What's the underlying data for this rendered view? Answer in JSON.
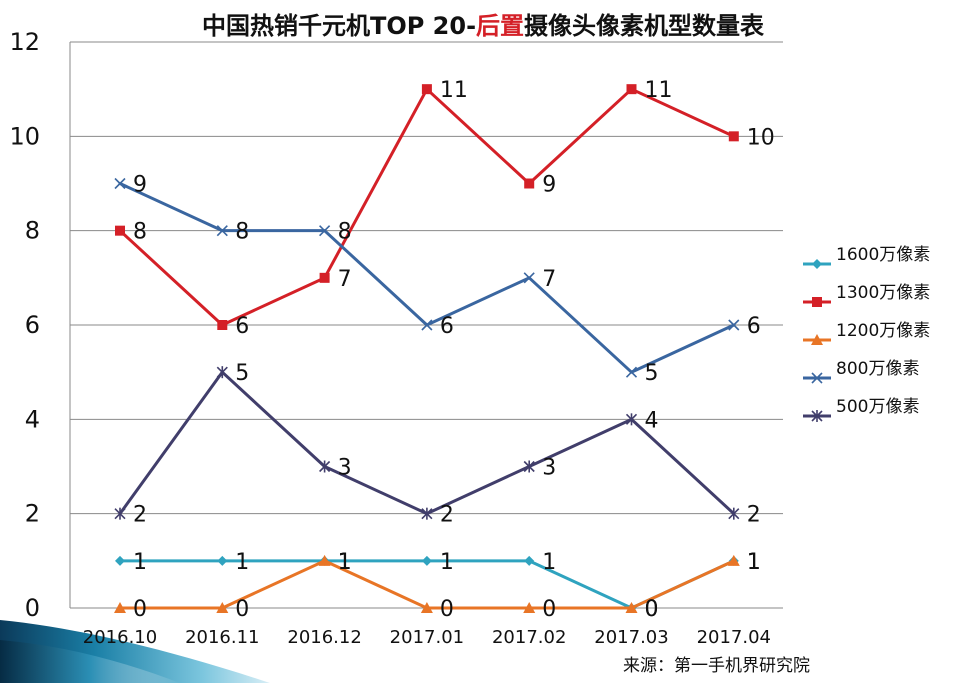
{
  "chart_data": {
    "type": "line",
    "title": "中国热销千元机TOP 20-后置摄像头像素机型数量表",
    "title_parts": {
      "before": "中国热销千元机TOP 20-",
      "highlight": "后置",
      "after": "摄像头像素机型数量表"
    },
    "categories": [
      "2016.10",
      "2016.11",
      "2016.12",
      "2017.01",
      "2017.02",
      "2017.03",
      "2017.04"
    ],
    "yticks": [
      "0",
      "2",
      "4",
      "6",
      "8",
      "10",
      "12"
    ],
    "ylim": [
      0,
      12
    ],
    "grid": true,
    "legend_position": "right",
    "series": [
      {
        "name": "1600万像素",
        "values": [
          1,
          1,
          1,
          1,
          1,
          0,
          1
        ],
        "color": "#2fa3bf",
        "marker": "diamond"
      },
      {
        "name": "1300万像素",
        "values": [
          8,
          6,
          7,
          11,
          9,
          11,
          10
        ],
        "color": "#d42027",
        "marker": "square"
      },
      {
        "name": "1200万像素",
        "values": [
          0,
          0,
          1,
          0,
          0,
          0,
          1
        ],
        "color": "#e87526",
        "marker": "triangle"
      },
      {
        "name": "800万像素",
        "values": [
          9,
          8,
          8,
          6,
          7,
          5,
          6
        ],
        "color": "#3a66a0",
        "marker": "x"
      },
      {
        "name": "500万像素",
        "values": [
          2,
          5,
          3,
          2,
          3,
          4,
          2
        ],
        "color": "#413e6b",
        "marker": "star"
      }
    ],
    "source": "来源：第一手机界研究院"
  }
}
